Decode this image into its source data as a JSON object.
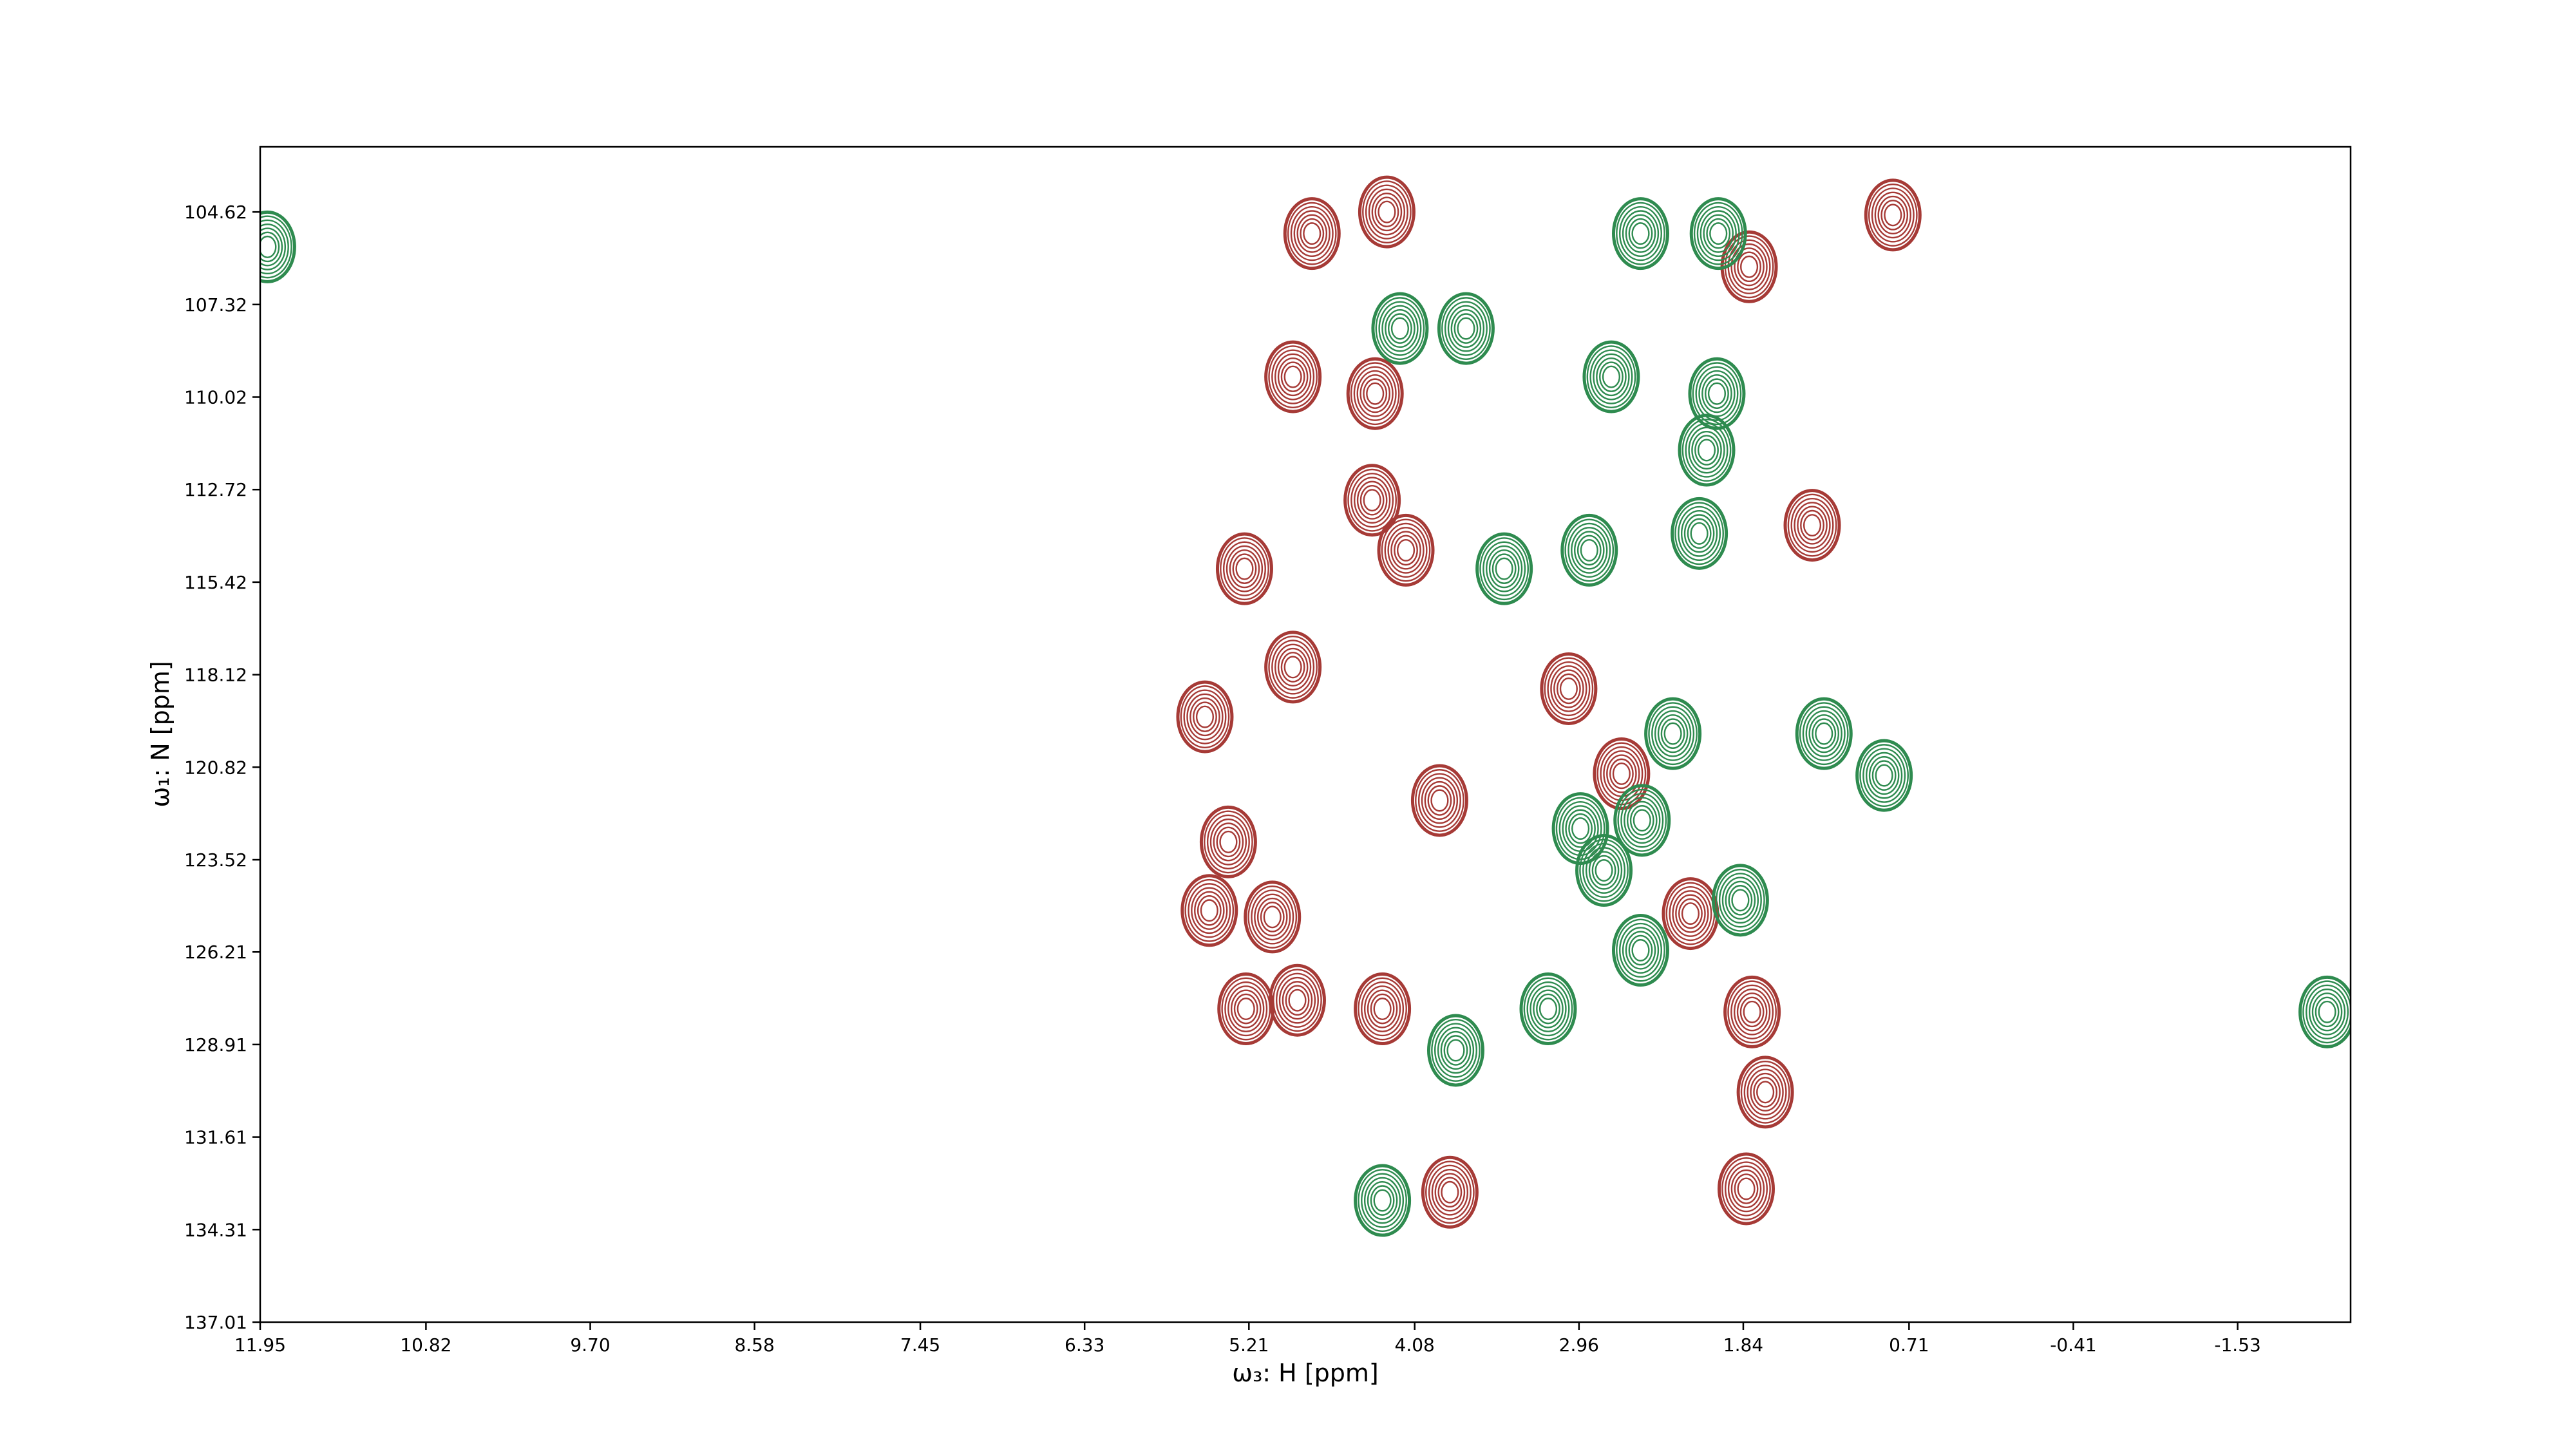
{
  "chart_data": {
    "type": "contour",
    "x_label": "ω₃: H [ppm]",
    "y_label": "ω₁: N [ppm]",
    "xlim": [
      11.95,
      -2.3
    ],
    "ylim": [
      137.01,
      102.72
    ],
    "xticks": [
      11.95,
      10.82,
      {
        "value": 9.7,
        "label": "9.70"
      },
      8.58,
      7.45,
      6.33,
      5.21,
      4.08,
      2.96,
      1.84,
      0.71,
      -0.41,
      -1.53
    ],
    "yticks": [
      104.62,
      107.32,
      110.02,
      112.72,
      115.42,
      118.12,
      120.82,
      123.52,
      126.21,
      128.91,
      131.61,
      134.31,
      137.01
    ],
    "series": [
      {
        "color": "#a63a36",
        "x": [
          4.78,
          4.27,
          0.82,
          4.91,
          4.35,
          5.24,
          5.35,
          5.48,
          5.23,
          4.3,
          3.84,
          1.82,
          2.67,
          1.37,
          1.78,
          1.69,
          5.51,
          5.05,
          4.88,
          4.14,
          4.37,
          3.91,
          3.03,
          2.2,
          4.91,
          1.8
        ],
        "values": [
          105.25,
          104.62,
          104.71,
          109.43,
          109.92,
          115.03,
          123.0,
          125.0,
          127.87,
          127.87,
          133.22,
          133.12,
          121.01,
          113.76,
          127.96,
          130.3,
          119.35,
          125.19,
          127.62,
          114.49,
          113.03,
          121.79,
          118.53,
          125.09,
          117.9,
          106.22
        ]
      },
      {
        "color": "#2e8b4f",
        "x": [
          4.18,
          3.73,
          2.54,
          2.01,
          2.74,
          2.02,
          3.47,
          0.88,
          2.14,
          2.89,
          2.32,
          2.95,
          2.53,
          2.79,
          3.17,
          1.86,
          1.29,
          3.8,
          2.09,
          11.9,
          -2.14,
          2.54,
          4.3
        ],
        "values": [
          108.02,
          108.02,
          105.25,
          105.25,
          109.43,
          109.92,
          115.03,
          121.06,
          114.0,
          114.49,
          119.84,
          122.61,
          122.37,
          123.83,
          127.87,
          124.7,
          119.84,
          129.08,
          111.57,
          105.64,
          127.96,
          126.16,
          133.46
        ]
      }
    ]
  }
}
